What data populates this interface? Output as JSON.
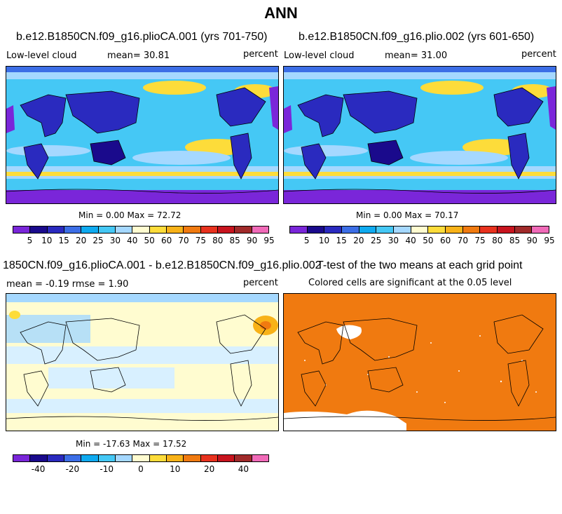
{
  "title": "ANN",
  "panels": [
    {
      "title": "b.e12.B1850CN.f09_g16.plioCA.001 (yrs 701-750)",
      "variable": "Low-level cloud",
      "stat_text": "mean=  30.81",
      "units": "percent",
      "minmax": "Min =   0.00 Max =  72.72"
    },
    {
      "title": "b.e12.B1850CN.f09_g16.plio.002 (yrs 601-650)",
      "variable": "Low-level cloud",
      "stat_text": "mean=  31.00",
      "units": "percent",
      "minmax": "Min =   0.00 Max =  70.17"
    },
    {
      "title": "1850CN.f09_g16.plioCA.001 - b.e12.B1850CN.f09_g16.plio.002",
      "stat_text": "mean =  -0.19    rmse =   1.90",
      "units": "percent",
      "minmax": "Min = -17.63 Max =  17.52"
    },
    {
      "title": "T-test of the two means at each grid point",
      "subtitle": "Colored cells are significant at the 0.05 level"
    }
  ],
  "colorbars": {
    "abs": {
      "colors": [
        "#7a26d9",
        "#1a0a8c",
        "#2a2abf",
        "#3c6ee6",
        "#0faaf0",
        "#45c8f5",
        "#a5d8ff",
        "#fffcd0",
        "#fddc3a",
        "#f8b218",
        "#f07a10",
        "#e8321e",
        "#c8141e",
        "#a02a2a",
        "#f06ab8"
      ],
      "labels": [
        "5",
        "10",
        "15",
        "20",
        "25",
        "30",
        "40",
        "50",
        "60",
        "70",
        "75",
        "80",
        "85",
        "90",
        "95"
      ]
    },
    "diff": {
      "colors": [
        "#7a26d9",
        "#1a0a8c",
        "#2a2abf",
        "#3c6ee6",
        "#0faaf0",
        "#45c8f5",
        "#a5d8ff",
        "#fffcd0",
        "#fddc3a",
        "#f8b218",
        "#f07a10",
        "#e8321e",
        "#c8141e",
        "#a02a2a",
        "#f06ab8"
      ],
      "labels": [
        "-40",
        "-20",
        "-10",
        "0",
        "10",
        "20",
        "40"
      ]
    }
  },
  "chart_data": {
    "type": "heatmap",
    "season": "ANN",
    "variable": "Low-level cloud",
    "units": "percent",
    "fields": [
      {
        "case": "b.e12.B1850CN.f09_g16.plioCA.001",
        "years": "701-750",
        "mean": 30.81,
        "min": 0.0,
        "max": 72.72
      },
      {
        "case": "b.e12.B1850CN.f09_g16.plio.002",
        "years": "601-650",
        "mean": 31.0,
        "min": 0.0,
        "max": 70.17
      },
      {
        "case": "difference",
        "mean": -0.19,
        "rmse": 1.9,
        "min": -17.63,
        "max": 17.52
      },
      {
        "case": "t-test",
        "significance_level": 0.05
      }
    ],
    "contour_levels_abs": [
      5,
      10,
      15,
      20,
      25,
      30,
      40,
      50,
      60,
      70,
      75,
      80,
      85,
      90,
      95
    ],
    "contour_levels_diff": [
      -40,
      -20,
      -10,
      0,
      10,
      20,
      40
    ]
  }
}
